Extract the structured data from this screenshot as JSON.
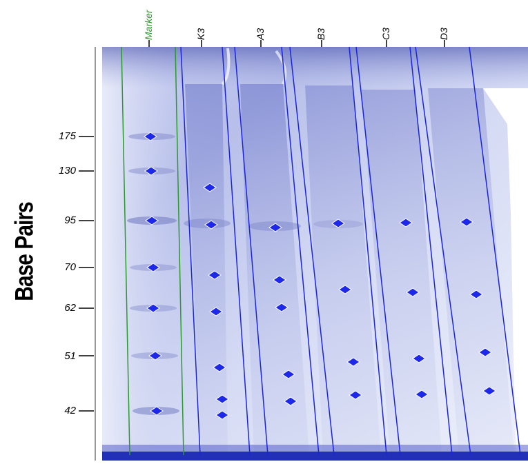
{
  "axis_title": "Base Pairs",
  "colors": {
    "gel_light": "#e1e6f8",
    "gel_mid": "#9ea6dd",
    "gel_dark": "#4450b0",
    "lane_line": "#1a24e0",
    "marker_line": "#2b9a2b",
    "band_marker": "#1d28e8",
    "marker_label": "#2b9a2b",
    "lane_label": "#000000"
  },
  "base_pairs": [
    175,
    130,
    95,
    70,
    62,
    51,
    42
  ],
  "lanes": [
    {
      "name": "Marker",
      "marker": true
    },
    {
      "name": "K3"
    },
    {
      "name": "A3"
    },
    {
      "name": "B3"
    },
    {
      "name": "C3"
    },
    {
      "name": "D3"
    }
  ]
}
